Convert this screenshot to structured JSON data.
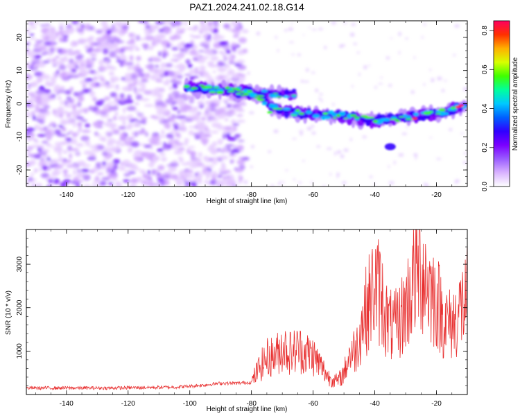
{
  "title": "PAZ1.2024.241.02.18.G14",
  "chart_data": [
    {
      "type": "heatmap",
      "xlabel": "Height of straight line (km)",
      "ylabel": "Frequency (Hz)",
      "xlim": [
        -153,
        -10
      ],
      "ylim": [
        -25,
        25
      ],
      "x_ticks": [
        -140,
        -120,
        -100,
        -80,
        -60,
        -40,
        -20
      ],
      "y_ticks": [
        -20,
        -10,
        0,
        10,
        20
      ],
      "colorbar": {
        "label": "Normalized spectral amplitude",
        "range": [
          0,
          0.85
        ],
        "ticks": [
          "0.0",
          "0.2",
          "0.4",
          "0.6",
          "0.8"
        ],
        "colors": [
          "#ffffff",
          "#d9b3ff",
          "#9a5cff",
          "#7a00ff",
          "#3000ff",
          "#0060ff",
          "#00c8ff",
          "#00ff9c",
          "#40ff00",
          "#d8ff00",
          "#ffb000",
          "#ff3000",
          "#ff0060"
        ]
      },
      "ridge": {
        "description_points_x": [
          -100,
          -90,
          -80,
          -70,
          -60,
          -50,
          -40,
          -30,
          -20,
          -10
        ],
        "description_points_y": [
          5,
          4,
          3.5,
          -2.5,
          -3,
          -4,
          -5,
          -4,
          -3,
          -0.5
        ]
      }
    },
    {
      "type": "line",
      "xlabel": "Height of straight line (km)",
      "ylabel": "SNR (10 * v/v)",
      "xlim": [
        -153,
        -10
      ],
      "ylim": [
        0,
        3800
      ],
      "x_ticks": [
        -140,
        -120,
        -100,
        -80,
        -60,
        -40,
        -20
      ],
      "y_ticks": [
        1000,
        2000,
        3000
      ],
      "color": "#e83030",
      "series": [
        {
          "x": [
            -153,
            -145,
            -135,
            -125,
            -115,
            -105,
            -100,
            -95,
            -90,
            -85,
            -80,
            -78,
            -75,
            -72,
            -70,
            -67,
            -65,
            -62,
            -60,
            -57,
            -55,
            -52,
            -50,
            -48,
            -46,
            -44,
            -42,
            -40,
            -38,
            -36,
            -34,
            -32,
            -30,
            -28,
            -26,
            -24,
            -22,
            -20,
            -18,
            -16,
            -14,
            -12,
            -10
          ],
          "values": [
            150,
            150,
            150,
            150,
            160,
            170,
            190,
            220,
            260,
            260,
            280,
            550,
            850,
            900,
            1100,
            950,
            1050,
            950,
            900,
            600,
            400,
            300,
            500,
            950,
            1050,
            1700,
            2100,
            2500,
            2300,
            1700,
            1500,
            1700,
            2000,
            2500,
            2900,
            2800,
            2400,
            2200,
            1800,
            1600,
            1700,
            2000,
            2200
          ]
        }
      ]
    }
  ]
}
